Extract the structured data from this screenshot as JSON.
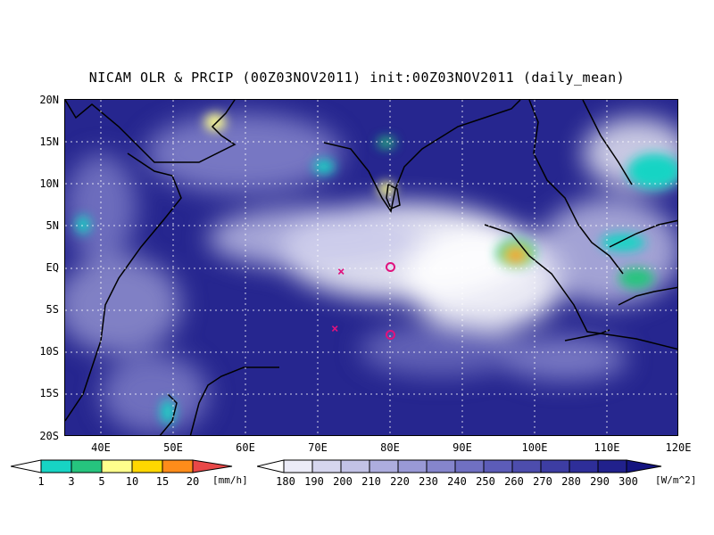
{
  "title": "NICAM OLR & PRCIP (00Z03NOV2011) init:00Z03NOV2011 (daily_mean)",
  "lat_labels": [
    "20N",
    "15N",
    "10N",
    "5N",
    "EQ",
    "5S",
    "10S",
    "15S",
    "20S"
  ],
  "lon_labels": [
    "40E",
    "50E",
    "60E",
    "70E",
    "80E",
    "90E",
    "100E",
    "110E",
    "120E"
  ],
  "map_extent": {
    "lon": [
      35,
      120
    ],
    "lat": [
      -20,
      20
    ]
  },
  "precip_colorbar": {
    "labels": [
      "1",
      "3",
      "5",
      "10",
      "15",
      "20"
    ],
    "unit": "[mm/h]",
    "colors": [
      "#ffffff",
      "#17d4c4",
      "#26c47e",
      "#ffff8c",
      "#ffd700",
      "#ff8c1a",
      "#e84848"
    ]
  },
  "olr_colorbar": {
    "labels": [
      "180",
      "190",
      "200",
      "210",
      "220",
      "230",
      "240",
      "250",
      "260",
      "270",
      "280",
      "290",
      "300"
    ],
    "unit": "[W/m^2]",
    "colors": [
      "#ffffff",
      "#ebebf7",
      "#d6d6ef",
      "#c2c2e6",
      "#adadde",
      "#9999d6",
      "#8585cc",
      "#7070c2",
      "#5c5cb8",
      "#4d4dad",
      "#3d3da3",
      "#2e2e99",
      "#21218c",
      "#141480"
    ]
  },
  "markers": [
    {
      "type": "x",
      "lon": 73,
      "lat": -0.6
    },
    {
      "type": "x",
      "lon": 72.6,
      "lat": -7.3
    },
    {
      "type": "circle",
      "lon": 80,
      "lat": 0
    },
    {
      "type": "circle",
      "lon": 80,
      "lat": -8
    }
  ],
  "colors": {
    "ocean_base": "#26268f",
    "marker": "#e0127d",
    "grid": "#ffffff"
  }
}
